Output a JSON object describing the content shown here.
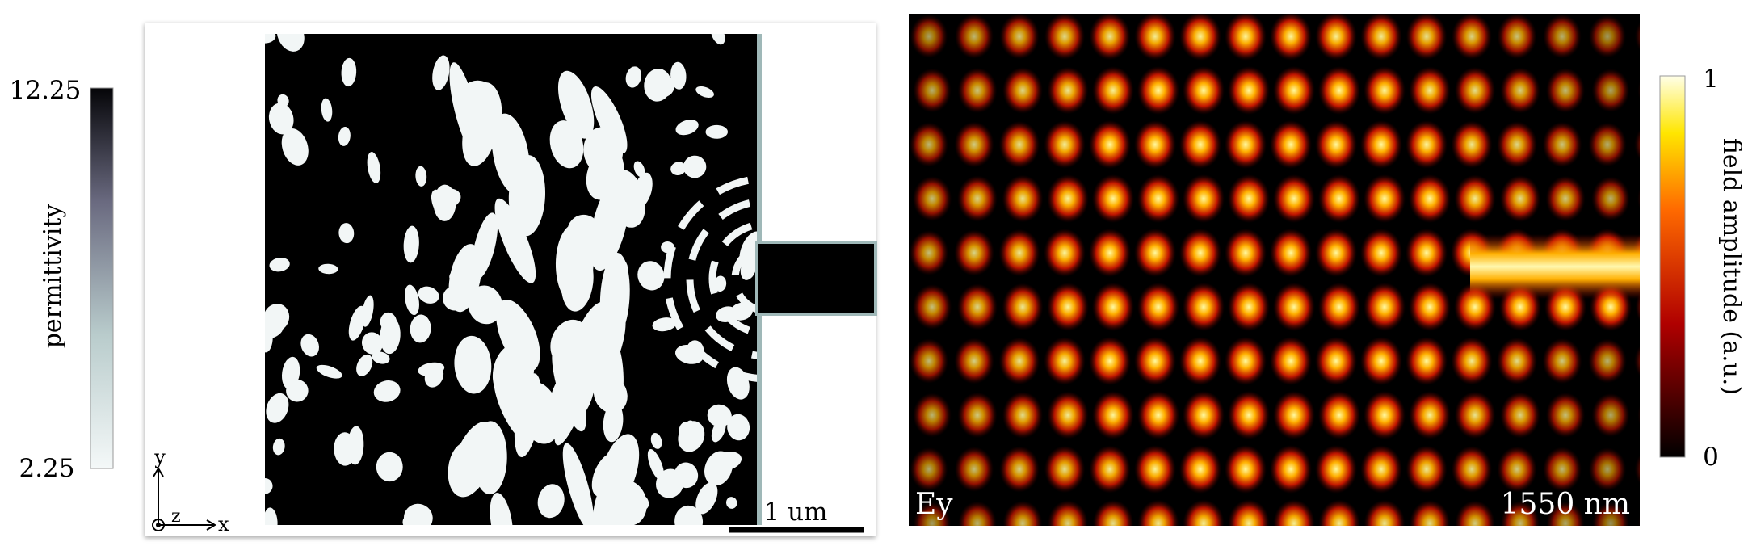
{
  "permittivity_panel": {
    "colorbar": {
      "max": 12.25,
      "min": 2.25,
      "label": "permittivity"
    },
    "axes": {
      "y": "y",
      "z": "z",
      "x": "x"
    },
    "scale_bar": "1 um"
  },
  "field_panel": {
    "component": "Ey",
    "wavelength": "1550 nm",
    "colorbar": {
      "max": 1,
      "min": 0,
      "label": "field amplitude (a.u.)"
    }
  }
}
